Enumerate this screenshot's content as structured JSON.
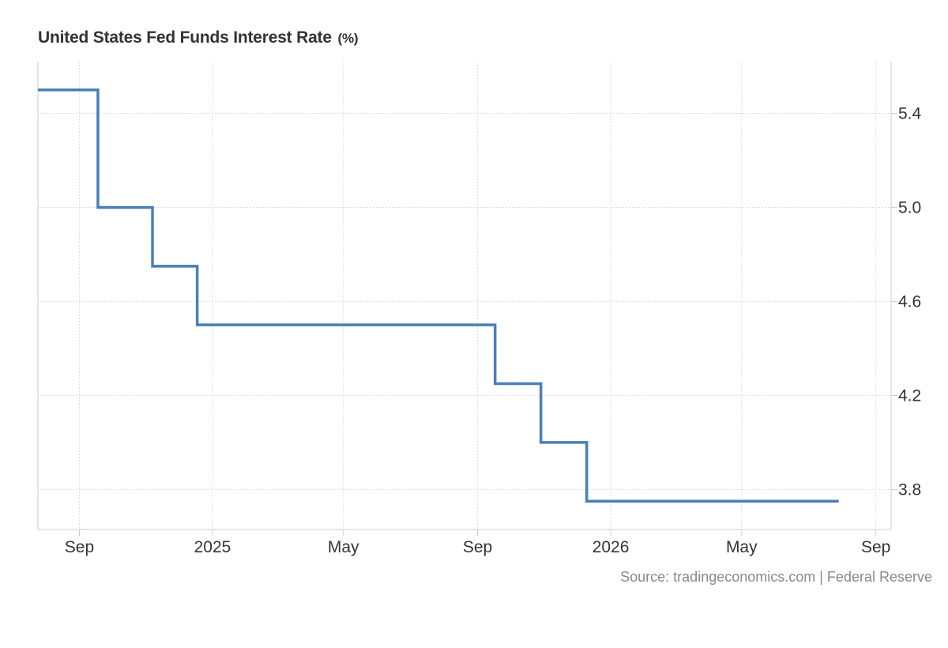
{
  "header": {
    "title": "United States Fed Funds Interest Rate",
    "unit": "(%)"
  },
  "footer": {
    "source": "Source: tradingeconomics.com | Federal Reserve"
  },
  "colors": {
    "series": "#4a7ebb",
    "grid": "#dddddd",
    "axis": "#cccccc",
    "text": "#333333",
    "source_text": "#888888"
  },
  "chart_data": {
    "type": "line",
    "step": true,
    "title": "United States Fed Funds Interest Rate (%)",
    "xlabel": "",
    "ylabel": "",
    "x_range": [
      "2024-07-25",
      "2026-09-15"
    ],
    "y_range": [
      3.63,
      5.62
    ],
    "y_ticks": [
      3.8,
      4.2,
      4.6,
      5.0,
      5.4
    ],
    "y_axis_position": "right",
    "x_ticks": [
      {
        "date": "2024-09-01",
        "label": "Sep"
      },
      {
        "date": "2025-01-01",
        "label": "2025"
      },
      {
        "date": "2025-05-01",
        "label": "May"
      },
      {
        "date": "2025-09-01",
        "label": "Sep"
      },
      {
        "date": "2026-01-01",
        "label": "2026"
      },
      {
        "date": "2026-05-01",
        "label": "May"
      },
      {
        "date": "2026-09-01",
        "label": "Sep"
      }
    ],
    "grid": true,
    "legend": "none",
    "series": [
      {
        "values": [
          {
            "x": "2024-07-25",
            "y": 5.5
          },
          {
            "x": "2024-09-18",
            "y": 5.0
          },
          {
            "x": "2024-11-07",
            "y": 4.75
          },
          {
            "x": "2024-12-18",
            "y": 4.5
          },
          {
            "x": "2025-09-17",
            "y": 4.25
          },
          {
            "x": "2025-10-29",
            "y": 4.0
          },
          {
            "x": "2025-12-10",
            "y": 3.75
          },
          {
            "x": "2026-07-29",
            "y": 3.75
          }
        ]
      }
    ]
  }
}
